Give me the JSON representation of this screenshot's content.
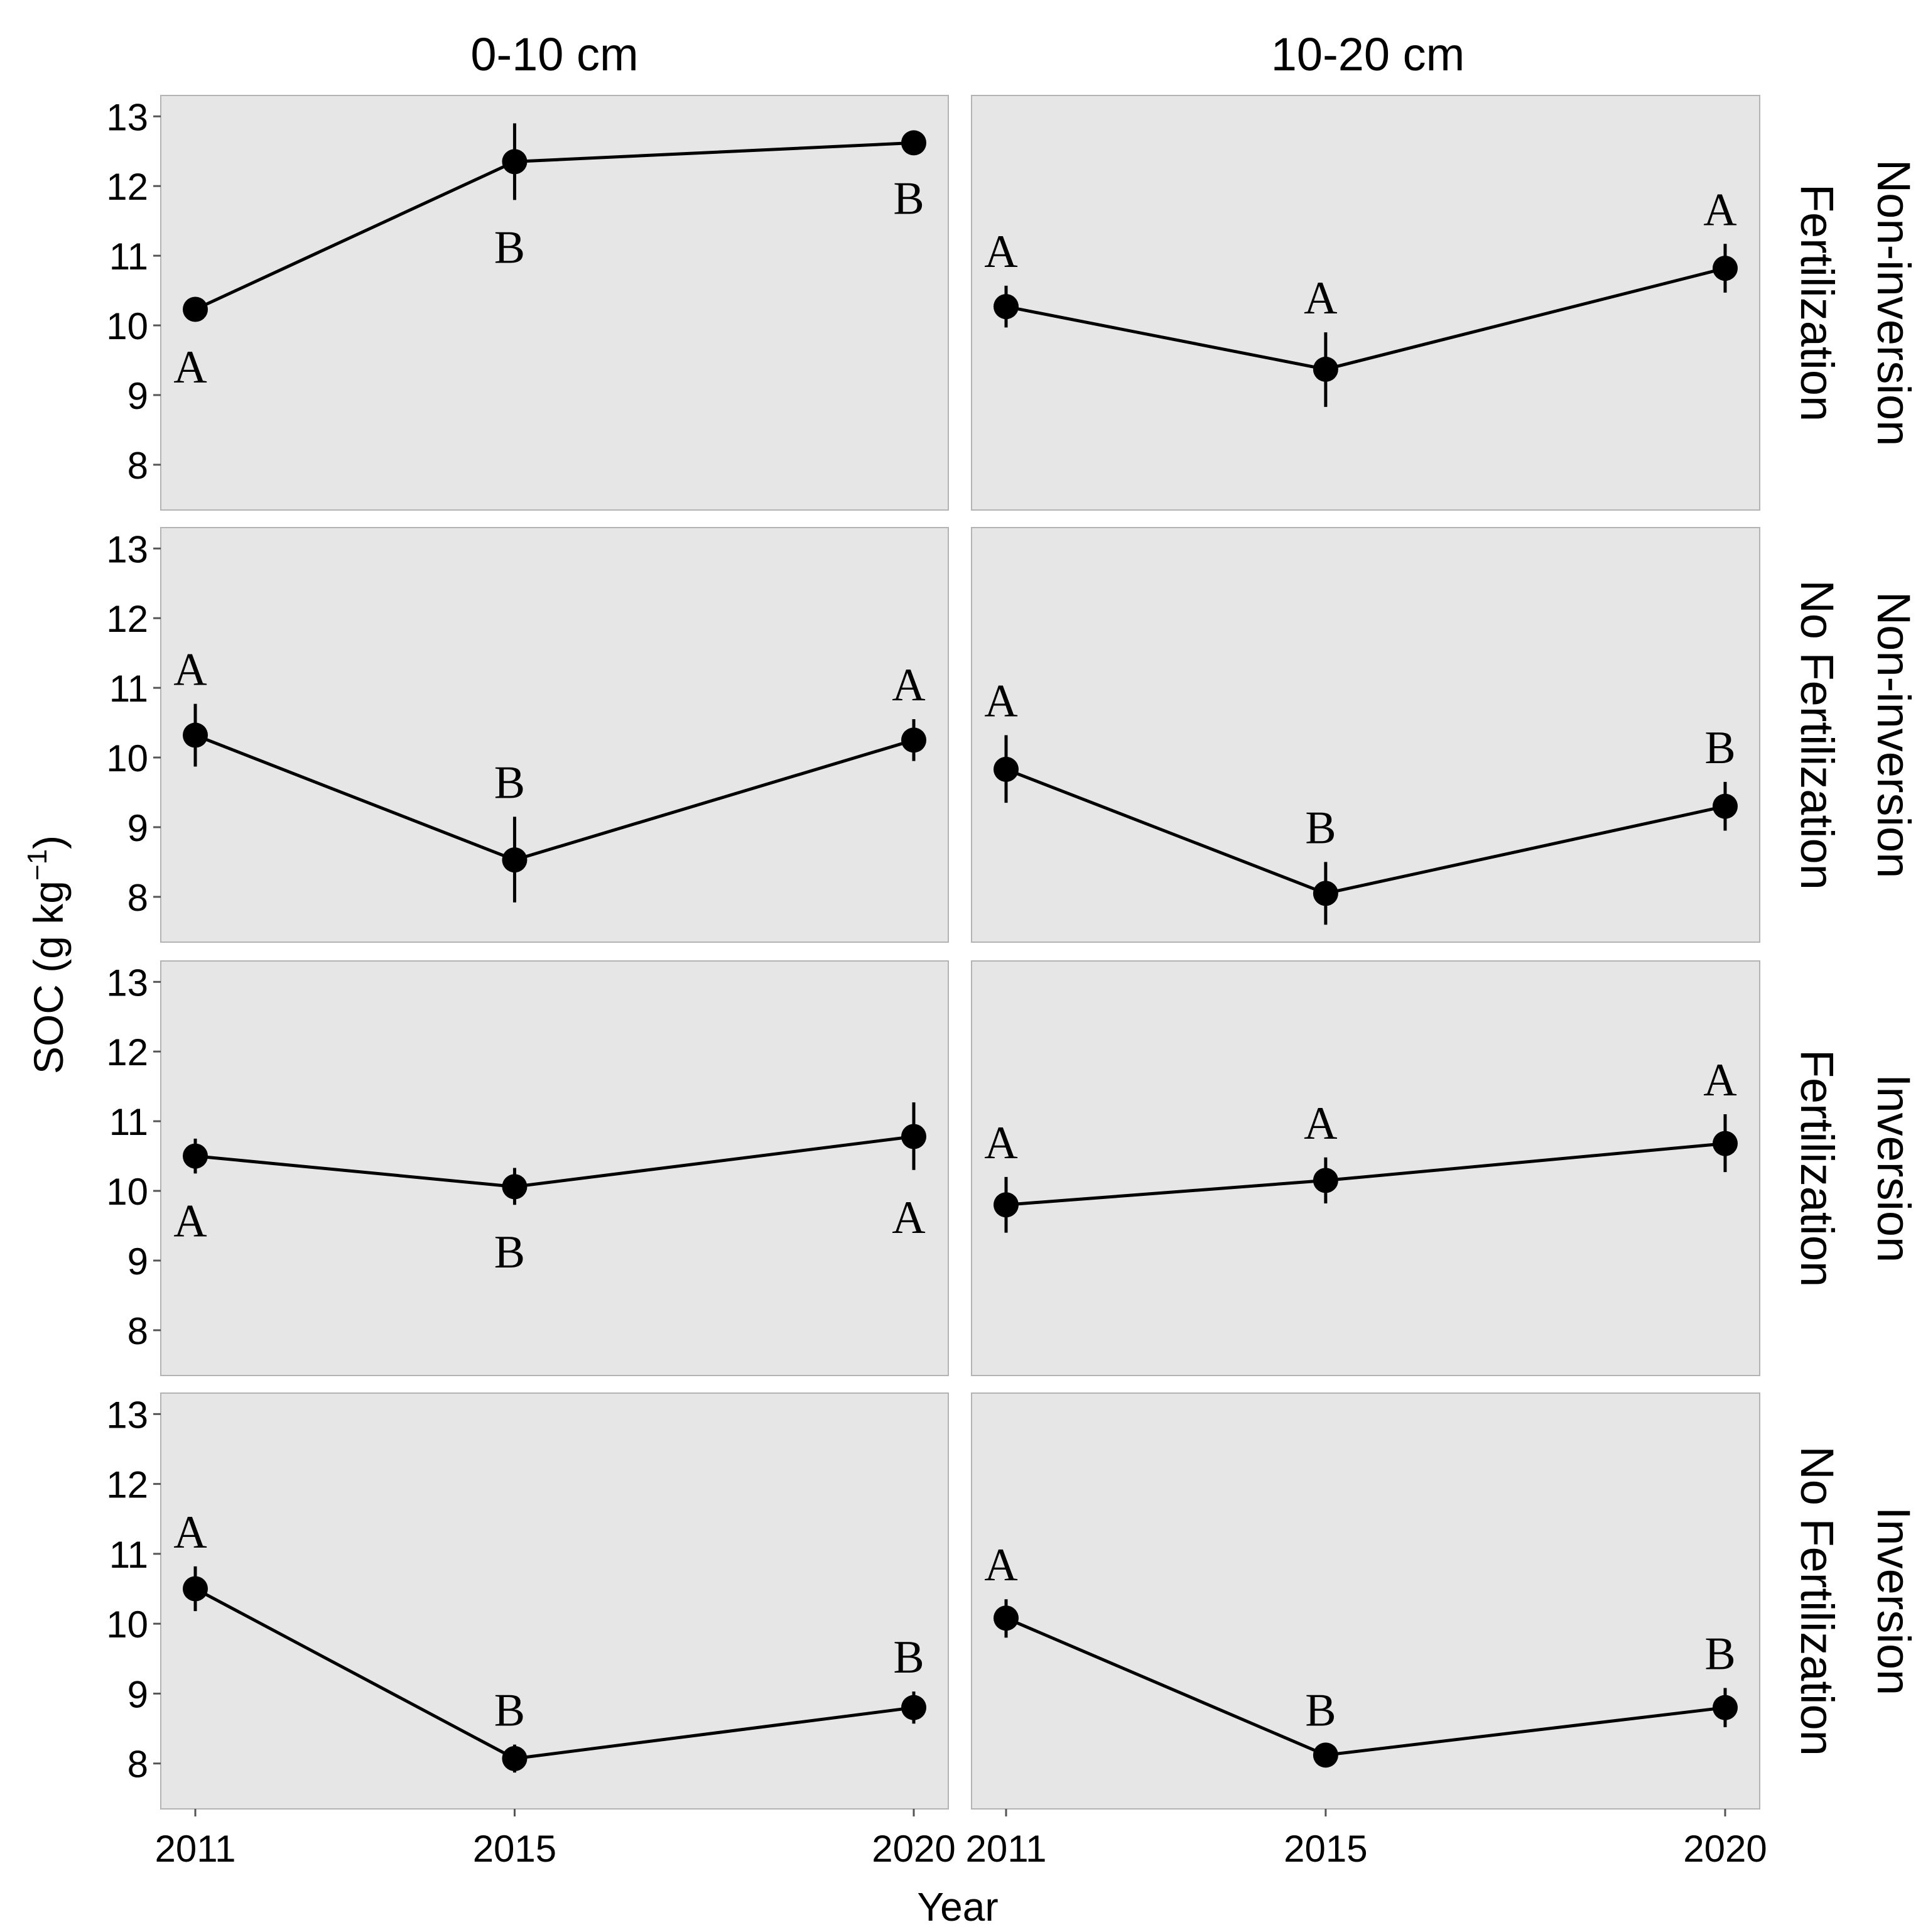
{
  "chart_data": {
    "type": "line",
    "ylabel_main": "SOC (g kg",
    "ylabel_sup": "−1",
    "ylabel_close": ")",
    "xlabel": "Year",
    "x_categories": [
      "2011",
      "2015",
      "2020"
    ],
    "x_values": [
      2011,
      2015,
      2020
    ],
    "y_ticks": [
      8,
      9,
      10,
      11,
      12,
      13
    ],
    "ylim": [
      7.35,
      13.3
    ],
    "columns": [
      "0-10 cm",
      "10-20 cm"
    ],
    "rows": [
      {
        "line1": "Non-inversion",
        "line2": "Fertilization"
      },
      {
        "line1": "Non-inversion",
        "line2": "No Fertilization"
      },
      {
        "line1": "Inversion",
        "line2": "Fertilization"
      },
      {
        "line1": "Inversion",
        "line2": "No Fertilization"
      }
    ],
    "panels": [
      {
        "row": 0,
        "col": 0,
        "points": [
          {
            "x": 2011,
            "y": 10.23,
            "lo": 10.08,
            "hi": 10.38,
            "letter": "A",
            "letter_pos": "below"
          },
          {
            "x": 2015,
            "y": 12.35,
            "lo": 11.8,
            "hi": 12.9,
            "letter": "B",
            "letter_pos": "below"
          },
          {
            "x": 2020,
            "y": 12.62,
            "lo": 12.5,
            "hi": 12.75,
            "letter": "B",
            "letter_pos": "below"
          }
        ]
      },
      {
        "row": 0,
        "col": 1,
        "points": [
          {
            "x": 2011,
            "y": 10.27,
            "lo": 9.97,
            "hi": 10.57,
            "letter": "A",
            "letter_pos": "above"
          },
          {
            "x": 2015,
            "y": 9.37,
            "lo": 8.83,
            "hi": 9.9,
            "letter": "A",
            "letter_pos": "above"
          },
          {
            "x": 2020,
            "y": 10.82,
            "lo": 10.47,
            "hi": 11.17,
            "letter": "A",
            "letter_pos": "above"
          }
        ]
      },
      {
        "row": 1,
        "col": 0,
        "points": [
          {
            "x": 2011,
            "y": 10.32,
            "lo": 9.87,
            "hi": 10.77,
            "letter": "A",
            "letter_pos": "above"
          },
          {
            "x": 2015,
            "y": 8.53,
            "lo": 7.92,
            "hi": 9.15,
            "letter": "B",
            "letter_pos": "above"
          },
          {
            "x": 2020,
            "y": 10.25,
            "lo": 9.95,
            "hi": 10.55,
            "letter": "A",
            "letter_pos": "above"
          }
        ]
      },
      {
        "row": 1,
        "col": 1,
        "points": [
          {
            "x": 2011,
            "y": 9.83,
            "lo": 9.35,
            "hi": 10.32,
            "letter": "A",
            "letter_pos": "above"
          },
          {
            "x": 2015,
            "y": 8.05,
            "lo": 7.6,
            "hi": 8.5,
            "letter": "B",
            "letter_pos": "above"
          },
          {
            "x": 2020,
            "y": 9.3,
            "lo": 8.95,
            "hi": 9.65,
            "letter": "B",
            "letter_pos": "above"
          }
        ]
      },
      {
        "row": 2,
        "col": 0,
        "points": [
          {
            "x": 2011,
            "y": 10.5,
            "lo": 10.25,
            "hi": 10.75,
            "letter": "A",
            "letter_pos": "below"
          },
          {
            "x": 2015,
            "y": 10.06,
            "lo": 9.8,
            "hi": 10.33,
            "letter": "B",
            "letter_pos": "below"
          },
          {
            "x": 2020,
            "y": 10.78,
            "lo": 10.3,
            "hi": 11.27,
            "letter": "A",
            "letter_pos": "below"
          }
        ]
      },
      {
        "row": 2,
        "col": 1,
        "points": [
          {
            "x": 2011,
            "y": 9.8,
            "lo": 9.4,
            "hi": 10.2,
            "letter": "A",
            "letter_pos": "above"
          },
          {
            "x": 2015,
            "y": 10.15,
            "lo": 9.82,
            "hi": 10.48,
            "letter": "A",
            "letter_pos": "above"
          },
          {
            "x": 2020,
            "y": 10.68,
            "lo": 10.27,
            "hi": 11.1,
            "letter": "A",
            "letter_pos": "above"
          }
        ]
      },
      {
        "row": 3,
        "col": 0,
        "points": [
          {
            "x": 2011,
            "y": 10.5,
            "lo": 10.18,
            "hi": 10.82,
            "letter": "A",
            "letter_pos": "above"
          },
          {
            "x": 2015,
            "y": 8.07,
            "lo": 7.87,
            "hi": 8.27,
            "letter": "B",
            "letter_pos": "above"
          },
          {
            "x": 2020,
            "y": 8.8,
            "lo": 8.57,
            "hi": 9.03,
            "letter": "B",
            "letter_pos": "above"
          }
        ]
      },
      {
        "row": 3,
        "col": 1,
        "points": [
          {
            "x": 2011,
            "y": 10.08,
            "lo": 9.8,
            "hi": 10.35,
            "letter": "A",
            "letter_pos": "above"
          },
          {
            "x": 2015,
            "y": 8.12,
            "lo": 7.97,
            "hi": 8.27,
            "letter": "B",
            "letter_pos": "above"
          },
          {
            "x": 2020,
            "y": 8.8,
            "lo": 8.52,
            "hi": 9.08,
            "letter": "B",
            "letter_pos": "above"
          }
        ]
      }
    ]
  }
}
